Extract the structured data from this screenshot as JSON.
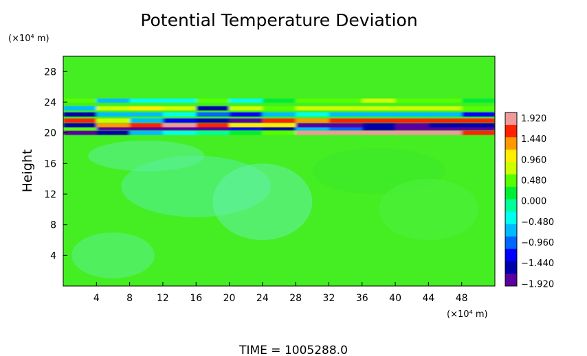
{
  "chart_data": {
    "type": "heatmap",
    "title": "Potential Temperature Deviation",
    "ylabel": "Height",
    "y_unit": "(×10⁴ m)",
    "x_unit": "(×10⁴ m)",
    "xlim": [
      0,
      52
    ],
    "ylim": [
      0,
      30
    ],
    "x_ticks": [
      4,
      8,
      12,
      16,
      20,
      24,
      28,
      32,
      36,
      40,
      44,
      48
    ],
    "y_ticks": [
      4,
      8,
      12,
      16,
      20,
      24,
      28
    ],
    "colorbar": {
      "labels": [
        "1.920",
        "1.440",
        "0.960",
        "0.480",
        "0.000",
        "−0.480",
        "−0.960",
        "−1.440",
        "−1.920"
      ],
      "levels": [
        1.92,
        1.44,
        0.96,
        0.48,
        0.0,
        -0.48,
        -0.96,
        -1.44,
        -1.92
      ],
      "colors": [
        "#f09a9a",
        "#ff2200",
        "#ff9900",
        "#ffee00",
        "#ccff00",
        "#55ff00",
        "#00ee33",
        "#00ff99",
        "#00ffee",
        "#00bbff",
        "#0066ff",
        "#0000ff",
        "#0000aa",
        "#5a00a0"
      ]
    },
    "background_color": "#44ee22",
    "bands": [
      {
        "y": 20.0,
        "values": [
          -1.8,
          -1.6,
          -0.8,
          -0.4,
          0.0,
          0.2,
          0.5,
          1.9,
          1.9,
          1.9,
          1.9,
          1.9,
          1.6
        ]
      },
      {
        "y": 20.6,
        "values": [
          0.4,
          -1.9,
          -1.9,
          -1.9,
          -1.9,
          -1.2,
          -1.6,
          -0.8,
          -1.0,
          -1.4,
          -1.9,
          -1.9,
          -1.9
        ]
      },
      {
        "y": 21.0,
        "values": [
          -1.5,
          1.2,
          1.5,
          1.9,
          1.4,
          1.0,
          0.9,
          -1.9,
          -1.9,
          -1.6,
          -1.9,
          -1.4,
          -1.5
        ]
      },
      {
        "y": 21.6,
        "values": [
          1.4,
          0.8,
          -0.8,
          -1.2,
          -1.5,
          -1.9,
          1.4,
          1.2,
          1.5,
          1.6,
          1.4,
          1.6,
          1.5
        ]
      },
      {
        "y": 22.4,
        "values": [
          -1.4,
          -0.8,
          -0.6,
          -0.4,
          -1.0,
          -1.2,
          -0.6,
          -0.4,
          -0.6,
          -0.8,
          -0.7,
          -0.7,
          -1.2
        ]
      },
      {
        "y": 23.2,
        "values": [
          -0.6,
          0.8,
          1.0,
          0.6,
          -1.4,
          0.6,
          0.5,
          0.6,
          0.7,
          0.8,
          0.7,
          0.6,
          0.5
        ]
      },
      {
        "y": 24.2,
        "values": [
          0.3,
          -0.6,
          -0.5,
          -0.4,
          0.3,
          -0.3,
          0.2,
          0.4,
          0.5,
          0.6,
          0.5,
          0.3,
          0.2
        ]
      }
    ],
    "time_label": "TIME = 1005288.0"
  }
}
